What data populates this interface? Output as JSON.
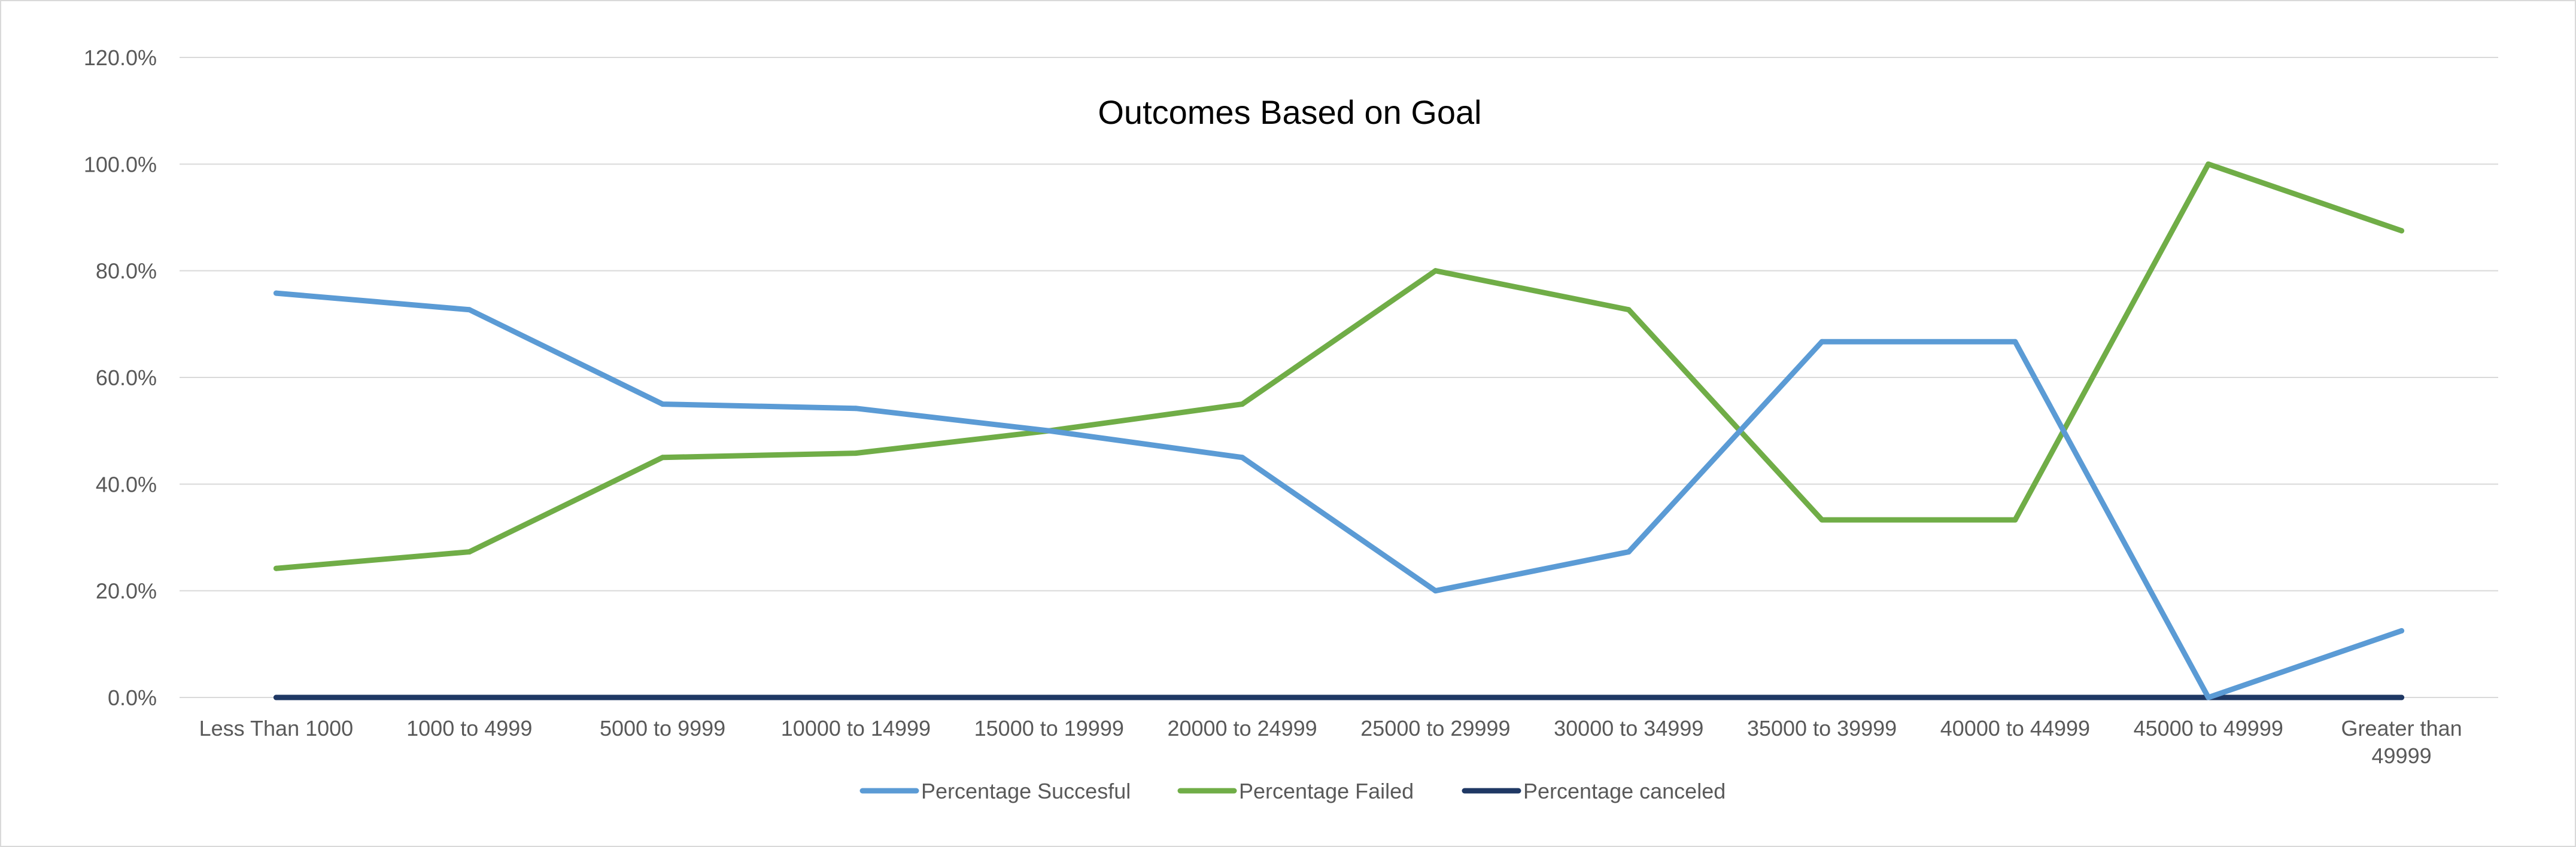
{
  "chart_data": {
    "type": "line",
    "title": "Outcomes Based on Goal",
    "xlabel": "",
    "ylabel": "",
    "categories": [
      "Less Than 1000",
      "1000 to 4999",
      "5000 to 9999",
      "10000 to 14999",
      "15000 to 19999",
      "20000 to 24999",
      "25000 to 29999",
      "30000 to 34999",
      "35000 to 39999",
      "40000 to 44999",
      "45000 to 49999",
      "Greater than 49999"
    ],
    "y_ticks": [
      "0.0%",
      "20.0%",
      "40.0%",
      "60.0%",
      "80.0%",
      "100.0%",
      "120.0%"
    ],
    "ylim": [
      0,
      120
    ],
    "y_unit": "%",
    "grid": true,
    "legend_position": "bottom",
    "series": [
      {
        "name": "Percentage Succesful",
        "color": "#5b9bd5",
        "values": [
          75.8,
          72.7,
          55.0,
          54.2,
          50.0,
          45.0,
          20.0,
          27.3,
          66.7,
          66.7,
          0.0,
          12.5
        ]
      },
      {
        "name": "Percentage Failed",
        "color": "#70ad47",
        "values": [
          24.2,
          27.3,
          45.0,
          45.8,
          50.0,
          55.0,
          80.0,
          72.7,
          33.3,
          33.3,
          100.0,
          87.5
        ]
      },
      {
        "name": "Percentage canceled",
        "color": "#1f3864",
        "values": [
          0,
          0,
          0,
          0,
          0,
          0,
          0,
          0,
          0,
          0,
          0,
          0
        ]
      }
    ]
  }
}
